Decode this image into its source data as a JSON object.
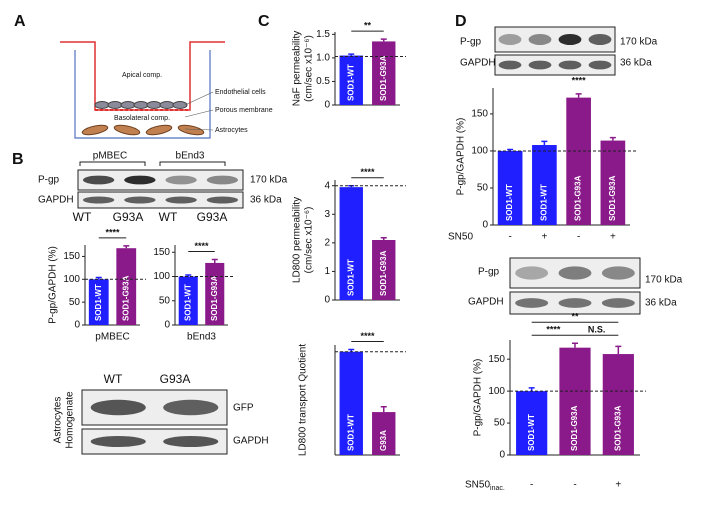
{
  "panel_labels": [
    "A",
    "B",
    "C",
    "D"
  ],
  "diagram": {
    "apical": "Apical comp.",
    "basolateral": "Basolateral comp.",
    "labels": [
      "Endothelial cells",
      "Porous membrane",
      "Astrocytes"
    ]
  },
  "blot_b": {
    "groups": [
      "pMBEC",
      "bEnd3"
    ],
    "rows": [
      "P-gp",
      "GAPDH"
    ],
    "sizes": [
      "170 kDa",
      "36 kDa"
    ],
    "lanes": [
      "WT",
      "G93A",
      "WT",
      "G93A"
    ]
  },
  "blot_astro": {
    "side": [
      "Astrocytes",
      "Homogenate"
    ],
    "lanes": [
      "WT",
      "G93A"
    ],
    "rows": [
      "GFP",
      "GAPDH"
    ]
  },
  "blot_d1": {
    "rows": [
      "P-gp",
      "GAPDH"
    ],
    "sizes": [
      "170 kDa",
      "36 kDa"
    ]
  },
  "blot_d2": {
    "rows": [
      "P-gp",
      "GAPDH"
    ],
    "sizes": [
      "170 kDa",
      "36 kDa"
    ]
  },
  "chart_data": [
    {
      "type": "bar",
      "ylabel": [
        "P-gp/GAPDH (%)"
      ],
      "xlabel": "pMBEC",
      "categories": [
        "SOD1-WT",
        "SOD1-G93A"
      ],
      "values": [
        100,
        168
      ],
      "errors": [
        4,
        5
      ],
      "colors": [
        "#1f1fff",
        "#8a1a8a"
      ],
      "ylim": [
        0,
        175
      ],
      "yticks": [
        0,
        50,
        100,
        150
      ],
      "reference_line": 100,
      "significance": [
        "****"
      ]
    },
    {
      "type": "bar",
      "xlabel": "bEnd3",
      "categories": [
        "SOD1-WT",
        "SOD1-G93A"
      ],
      "values": [
        100,
        128
      ],
      "errors": [
        3,
        7
      ],
      "colors": [
        "#1f1fff",
        "#8a1a8a"
      ],
      "ylim": [
        0,
        165
      ],
      "yticks": [
        0,
        50,
        100,
        150
      ],
      "reference_line": 100,
      "significance": [
        "****"
      ]
    },
    {
      "type": "bar",
      "ylabel": [
        "NaF permeability",
        "(cm/sec x10⁻⁶)"
      ],
      "categories": [
        "SOD1-WT",
        "SOD1-G93A"
      ],
      "values": [
        1.05,
        1.35
      ],
      "errors": [
        0.03,
        0.05
      ],
      "colors": [
        "#1f1fff",
        "#8a1a8a"
      ],
      "ylim": [
        0,
        1.55
      ],
      "yticks": [
        0,
        0.5,
        {
          "value": 1,
          "label": "1.0"
        },
        1.5
      ],
      "reference_line": 1.03,
      "significance": [
        "**"
      ]
    },
    {
      "type": "bar",
      "ylabel": [
        "LD800 permeability",
        "(cm/sec x10⁻⁶)"
      ],
      "categories": [
        "SOD1-WT",
        "SOD1-G93A"
      ],
      "values": [
        3.95,
        2.1
      ],
      "errors": [
        0.05,
        0.08
      ],
      "colors": [
        "#1f1fff",
        "#8a1a8a"
      ],
      "ylim": [
        0,
        4.2
      ],
      "yticks": [
        0,
        1,
        2,
        3,
        4
      ],
      "reference_line": 4,
      "significance": [
        "****"
      ]
    },
    {
      "type": "bar",
      "ylabel": [
        "LD800 transport Quotient"
      ],
      "categories": [
        "SOD1-WT",
        "G93A"
      ],
      "values": [
        3.85,
        1.6
      ],
      "errors": [
        0.08,
        0.2
      ],
      "colors": [
        "#1f1fff",
        "#8a1a8a"
      ],
      "ylim": [
        0,
        4.1
      ],
      "reference_line": 3.85,
      "significance": [
        "****"
      ]
    },
    {
      "type": "bar",
      "ylabel": [
        "P-gp/GAPDH (%)"
      ],
      "categories": [
        "SOD1-WT",
        "SOD1-WT",
        "SOD1-G93A",
        "SOD1-G93A"
      ],
      "values": [
        100,
        108,
        172,
        114
      ],
      "errors": [
        2,
        5,
        5,
        4
      ],
      "colors": [
        "#1f1fff",
        "#1f1fff",
        "#8a1a8a",
        "#8a1a8a"
      ],
      "ylim": [
        0,
        185
      ],
      "yticks": [
        0,
        50,
        100,
        150
      ],
      "reference_line": 100,
      "significance": [
        "****"
      ],
      "conditions": {
        "label": "SN50",
        "values": [
          "-",
          "+",
          "-",
          "+"
        ]
      }
    },
    {
      "type": "bar",
      "ylabel": [
        "P-gp/GAPDH (%)"
      ],
      "categories": [
        "SOD1-WT",
        "SOD1-G93A",
        "SOD1-G93A"
      ],
      "values": [
        100,
        168,
        158
      ],
      "errors": [
        5,
        7,
        12
      ],
      "colors": [
        "#1f1fff",
        "#8a1a8a",
        "#8a1a8a"
      ],
      "ylim": [
        0,
        180
      ],
      "yticks": [
        0,
        50,
        100,
        150
      ],
      "reference_line": 100,
      "significance": [
        "****",
        "**",
        "N.S."
      ],
      "conditions": {
        "label": "SN50",
        "subscript": "inac.",
        "values": [
          "-",
          "-",
          "+"
        ]
      }
    }
  ]
}
